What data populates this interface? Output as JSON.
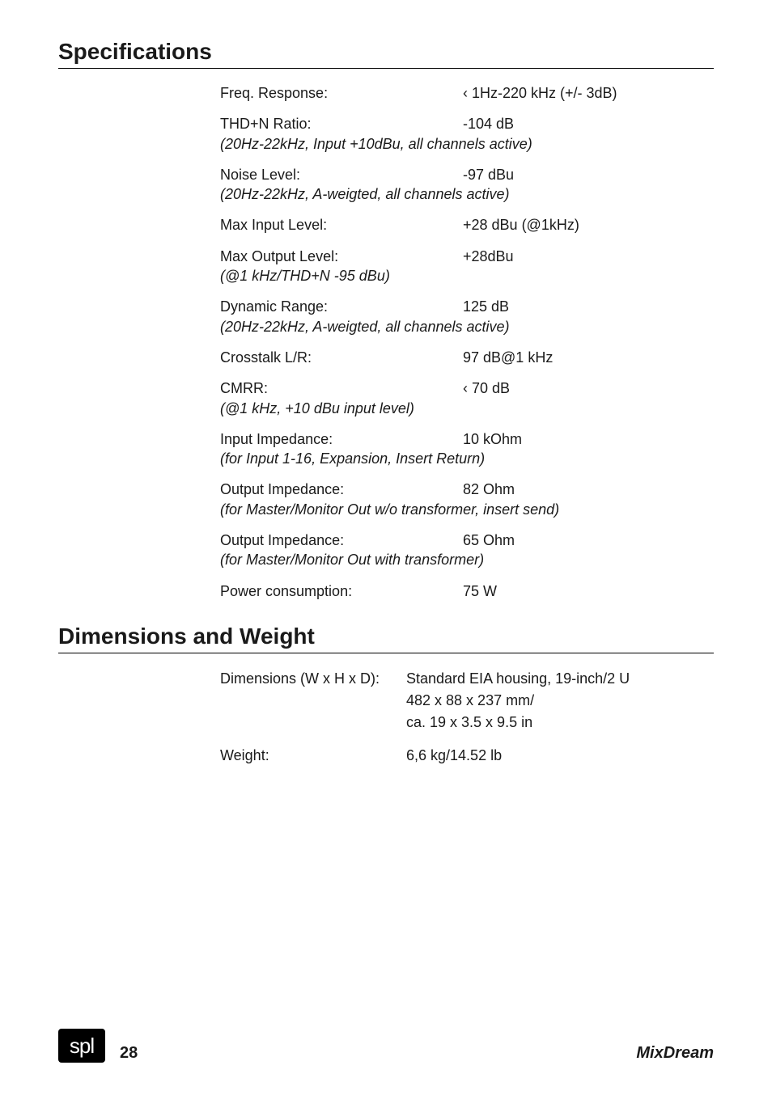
{
  "sections": {
    "specs_title": "Specifications",
    "dims_title": "Dimensions and Weight"
  },
  "specs": [
    {
      "label": "Freq. Response:",
      "value": "‹ 1Hz-220 kHz (+/- 3dB)",
      "note": null
    },
    {
      "label": "THD+N Ratio:",
      "value": "-104 dB",
      "note": "(20Hz-22kHz, Input +10dBu, all channels active)"
    },
    {
      "label": "Noise Level:",
      "value": "-97 dBu",
      "note": "(20Hz-22kHz, A-weigted, all channels active)"
    },
    {
      "label": "Max Input Level:",
      "value": "+28 dBu (@1kHz)",
      "note": null
    },
    {
      "label": "Max Output Level:",
      "value": "+28dBu",
      "note": "(@1 kHz/THD+N -95 dBu)"
    },
    {
      "label": "Dynamic Range:",
      "value": "125 dB",
      "note": "(20Hz-22kHz, A-weigted, all channels active)"
    },
    {
      "label": "Crosstalk L/R:",
      "value": "97 dB@1 kHz",
      "note": null
    },
    {
      "label": "CMRR:",
      "value": "‹ 70 dB",
      "note": "(@1 kHz, +10 dBu input level)"
    },
    {
      "label": "Input Impedance:",
      "value": "10 kOhm",
      "note": "(for Input 1-16, Expansion, Insert Return)"
    },
    {
      "label": "Output Impedance:",
      "value": "82 Ohm",
      "note": "(for Master/Monitor Out w/o transformer, insert send)"
    },
    {
      "label": "Output Impedance:",
      "value": "65 Ohm",
      "note": "(for Master/Monitor Out with transformer)"
    },
    {
      "label": "Power consumption:",
      "value": "75 W",
      "note": null
    }
  ],
  "dims": [
    {
      "label": "Dimensions (W x H x D):",
      "value": "Standard EIA housing, 19-inch/2 U\n482 x 88 x 237 mm/\nca. 19 x 3.5 x 9.5 in"
    },
    {
      "label": "Weight:",
      "value": "6,6 kg/14.52 lb"
    }
  ],
  "footer": {
    "logo": "spl",
    "page": "28",
    "product": "MixDream"
  }
}
